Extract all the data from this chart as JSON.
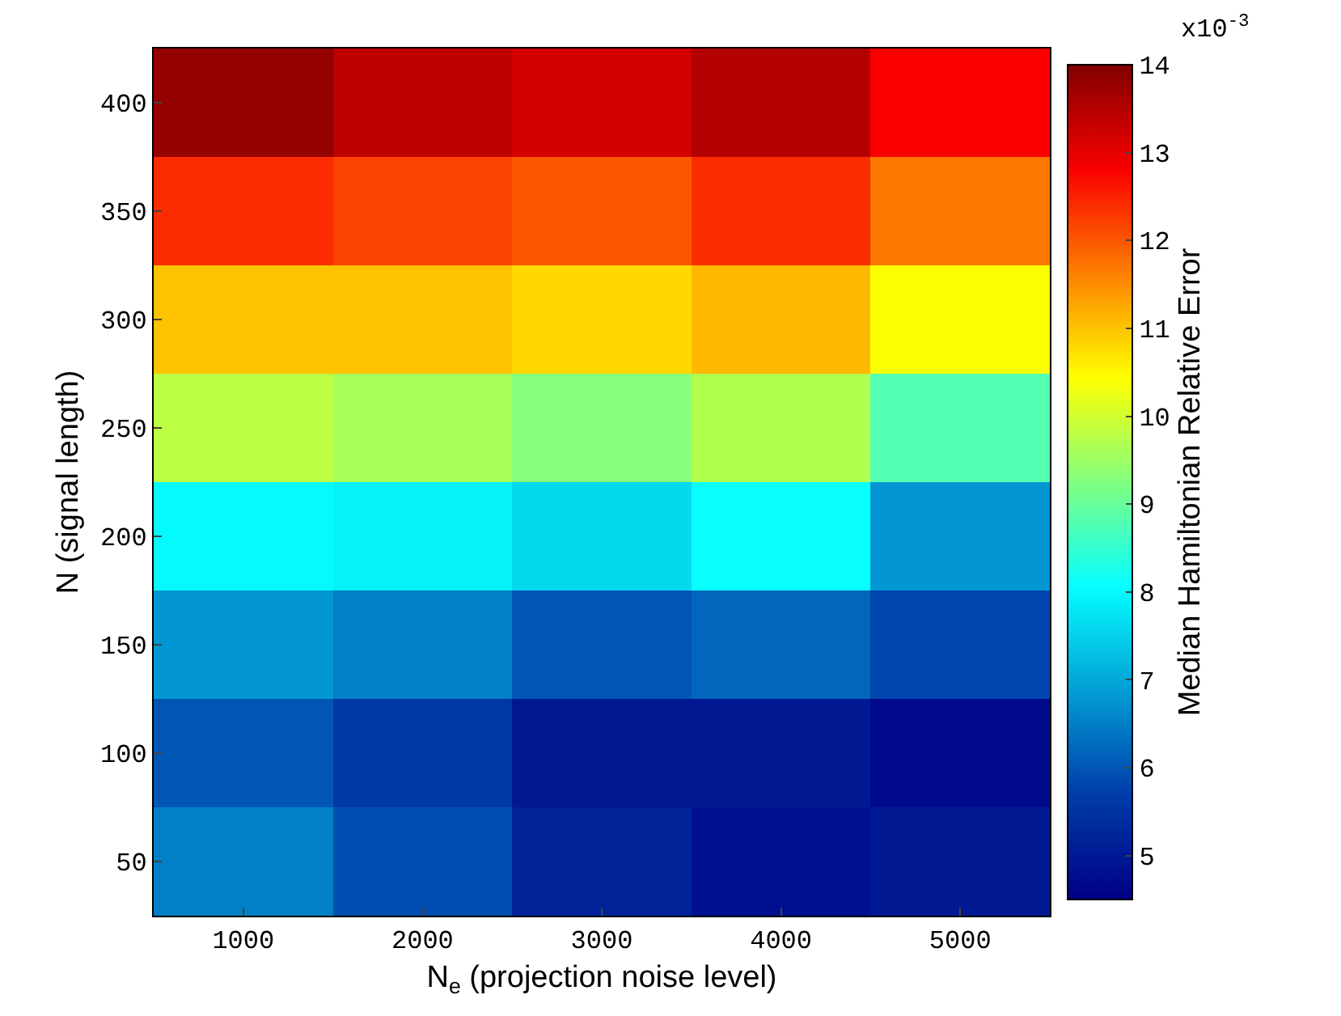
{
  "chart_data": {
    "type": "heatmap",
    "xlabel": "N$_{e}$ (projection noise level)",
    "ylabel": "N (signal length)",
    "clabel": "Median Hamiltonian Relative Error",
    "annotations": [
      "x10$^{-3}$"
    ],
    "categories": [
      "1000",
      "2000",
      "3000",
      "4000",
      "5000"
    ],
    "y_categories": [
      "400",
      "350",
      "300",
      "250",
      "200",
      "150",
      "100",
      "50"
    ],
    "cells": [
      [
        13.8,
        13.4,
        13.2,
        13.5,
        12.8
      ],
      [
        12.4,
        12.2,
        12.0,
        12.4,
        11.7
      ],
      [
        11.0,
        11.0,
        10.8,
        11.1,
        10.4
      ],
      [
        9.8,
        9.6,
        9.3,
        9.7,
        8.8
      ],
      [
        8.0,
        7.9,
        7.6,
        8.1,
        6.8
      ],
      [
        6.8,
        6.5,
        6.0,
        6.2,
        5.8
      ],
      [
        6.0,
        5.6,
        5.0,
        5.0,
        4.7
      ],
      [
        6.5,
        5.9,
        5.2,
        4.8,
        5.0
      ]
    ],
    "clim": [
      4.5,
      14
    ],
    "cticks": [
      5,
      6,
      7,
      8,
      9,
      10,
      11,
      12,
      13,
      14
    ]
  }
}
